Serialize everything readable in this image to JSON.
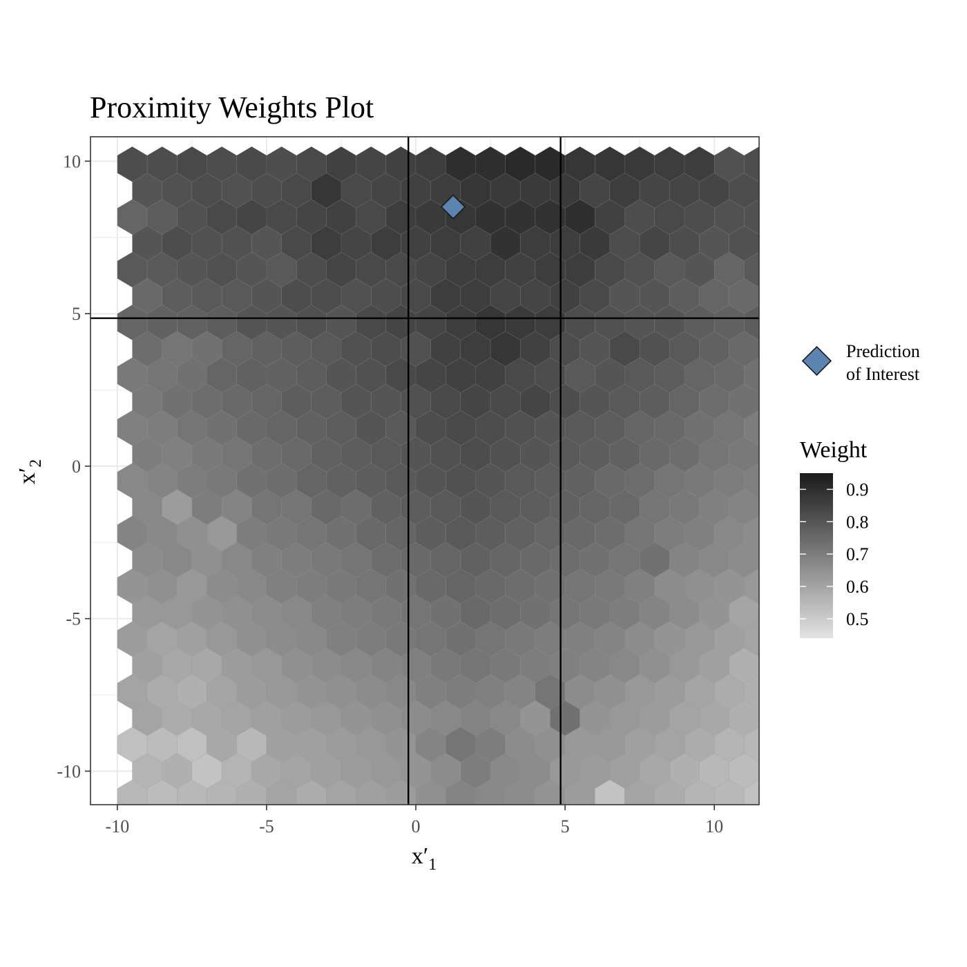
{
  "chart_data": {
    "type": "heatmap",
    "title": "Proximity Weights Plot",
    "xlabel": "x′",
    "xlabel_sub": "1",
    "ylabel": "x′",
    "ylabel_sub": "2",
    "xlim": [
      -10.9,
      11.5
    ],
    "ylim": [
      -11.1,
      10.8
    ],
    "x_ticks": [
      -10,
      -5,
      0,
      5,
      10
    ],
    "y_ticks": [
      -10,
      -5,
      0,
      5,
      10
    ],
    "x_tick_labels": [
      "-10",
      "-5",
      "0",
      "5",
      "10"
    ],
    "y_tick_labels": [
      "-10",
      "-5",
      "0",
      "5",
      "10"
    ],
    "grid": true,
    "vertical_lines": [
      -0.25,
      4.85
    ],
    "horizontal_lines": [
      4.85
    ],
    "prediction_of_interest": {
      "x": 1.25,
      "y": 8.5,
      "color": "#5b84b1"
    },
    "hex_grid": {
      "x_start": -9.5,
      "x_step": 1.0,
      "y_start": 9.9,
      "y_step": -0.865,
      "rows": 26,
      "odd_row_x_offset": 0.5
    },
    "hex_weights": [
      [
        0.82,
        0.82,
        0.83,
        0.82,
        0.83,
        0.82,
        0.83,
        0.85,
        0.84,
        0.85,
        0.86,
        0.9,
        0.9,
        0.91,
        0.91,
        0.88,
        0.88,
        0.87,
        0.86,
        0.86,
        0.81,
        0.82,
        0.81
      ],
      [
        0.8,
        0.81,
        0.82,
        0.81,
        0.82,
        0.83,
        0.88,
        0.83,
        0.84,
        0.85,
        0.86,
        0.88,
        0.87,
        0.87,
        0.87,
        0.84,
        0.86,
        0.84,
        0.84,
        0.84,
        0.82,
        0.82
      ],
      [
        0.76,
        0.78,
        0.81,
        0.83,
        0.84,
        0.83,
        0.84,
        0.85,
        0.83,
        0.86,
        0.87,
        0.88,
        0.89,
        0.89,
        0.89,
        0.9,
        0.85,
        0.82,
        0.83,
        0.82,
        0.81,
        0.81,
        0.87
      ],
      [
        0.8,
        0.82,
        0.81,
        0.81,
        0.8,
        0.83,
        0.86,
        0.84,
        0.86,
        0.85,
        0.86,
        0.85,
        0.89,
        0.86,
        0.86,
        0.87,
        0.82,
        0.84,
        0.82,
        0.8,
        0.81,
        0.8
      ],
      [
        0.79,
        0.79,
        0.8,
        0.81,
        0.8,
        0.79,
        0.82,
        0.84,
        0.83,
        0.83,
        0.84,
        0.86,
        0.86,
        0.85,
        0.86,
        0.86,
        0.83,
        0.81,
        0.79,
        0.8,
        0.76,
        0.79,
        0.82
      ],
      [
        0.75,
        0.78,
        0.79,
        0.79,
        0.8,
        0.82,
        0.82,
        0.81,
        0.82,
        0.83,
        0.86,
        0.86,
        0.84,
        0.84,
        0.85,
        0.83,
        0.8,
        0.8,
        0.78,
        0.76,
        0.75,
        0.79
      ],
      [
        0.76,
        0.77,
        0.77,
        0.78,
        0.8,
        0.8,
        0.81,
        0.8,
        0.83,
        0.84,
        0.84,
        0.86,
        0.88,
        0.87,
        0.86,
        0.82,
        0.81,
        0.8,
        0.8,
        0.78,
        0.77,
        0.78,
        0.78
      ],
      [
        0.74,
        0.72,
        0.73,
        0.76,
        0.77,
        0.78,
        0.79,
        0.81,
        0.82,
        0.81,
        0.85,
        0.86,
        0.88,
        0.85,
        0.82,
        0.8,
        0.83,
        0.81,
        0.79,
        0.77,
        0.75,
        0.8
      ],
      [
        0.71,
        0.72,
        0.73,
        0.76,
        0.77,
        0.77,
        0.78,
        0.8,
        0.81,
        0.83,
        0.84,
        0.85,
        0.85,
        0.83,
        0.82,
        0.79,
        0.8,
        0.79,
        0.78,
        0.76,
        0.75,
        0.73,
        0.72
      ],
      [
        0.71,
        0.73,
        0.74,
        0.75,
        0.76,
        0.78,
        0.78,
        0.8,
        0.8,
        0.81,
        0.83,
        0.84,
        0.83,
        0.84,
        0.82,
        0.8,
        0.79,
        0.78,
        0.76,
        0.74,
        0.73,
        0.72
      ],
      [
        0.69,
        0.7,
        0.72,
        0.73,
        0.75,
        0.76,
        0.77,
        0.78,
        0.8,
        0.79,
        0.82,
        0.83,
        0.82,
        0.81,
        0.8,
        0.79,
        0.78,
        0.76,
        0.75,
        0.73,
        0.72,
        0.7,
        0.7
      ],
      [
        0.7,
        0.69,
        0.71,
        0.72,
        0.74,
        0.75,
        0.77,
        0.78,
        0.79,
        0.8,
        0.81,
        0.82,
        0.81,
        0.8,
        0.79,
        0.78,
        0.77,
        0.75,
        0.74,
        0.72,
        0.71,
        0.7
      ],
      [
        0.67,
        0.68,
        0.7,
        0.71,
        0.73,
        0.74,
        0.76,
        0.77,
        0.78,
        0.79,
        0.8,
        0.81,
        0.8,
        0.79,
        0.78,
        0.77,
        0.75,
        0.74,
        0.72,
        0.71,
        0.7,
        0.69,
        0.6
      ],
      [
        0.67,
        0.62,
        0.7,
        0.68,
        0.72,
        0.72,
        0.75,
        0.74,
        0.77,
        0.78,
        0.79,
        0.8,
        0.79,
        0.78,
        0.77,
        0.76,
        0.75,
        0.72,
        0.71,
        0.69,
        0.68,
        0.67
      ],
      [
        0.68,
        0.67,
        0.65,
        0.63,
        0.7,
        0.71,
        0.72,
        0.73,
        0.75,
        0.76,
        0.78,
        0.79,
        0.78,
        0.77,
        0.76,
        0.75,
        0.74,
        0.72,
        0.7,
        0.69,
        0.67,
        0.66,
        0.67
      ],
      [
        0.66,
        0.67,
        0.65,
        0.67,
        0.69,
        0.7,
        0.71,
        0.72,
        0.74,
        0.75,
        0.76,
        0.77,
        0.76,
        0.75,
        0.74,
        0.73,
        0.72,
        0.73,
        0.68,
        0.67,
        0.66,
        0.65
      ],
      [
        0.64,
        0.65,
        0.63,
        0.66,
        0.67,
        0.69,
        0.7,
        0.71,
        0.72,
        0.73,
        0.75,
        0.76,
        0.75,
        0.74,
        0.73,
        0.72,
        0.71,
        0.69,
        0.66,
        0.65,
        0.64,
        0.63,
        0.62
      ],
      [
        0.63,
        0.63,
        0.64,
        0.65,
        0.66,
        0.67,
        0.69,
        0.7,
        0.71,
        0.72,
        0.73,
        0.75,
        0.74,
        0.73,
        0.72,
        0.71,
        0.7,
        0.68,
        0.66,
        0.64,
        0.6,
        0.61
      ],
      [
        0.62,
        0.6,
        0.61,
        0.63,
        0.65,
        0.66,
        0.67,
        0.69,
        0.7,
        0.71,
        0.72,
        0.73,
        0.72,
        0.71,
        0.7,
        0.69,
        0.68,
        0.66,
        0.64,
        0.63,
        0.61,
        0.6,
        0.67
      ],
      [
        0.61,
        0.59,
        0.59,
        0.62,
        0.63,
        0.65,
        0.66,
        0.67,
        0.68,
        0.69,
        0.71,
        0.72,
        0.71,
        0.7,
        0.69,
        0.68,
        0.67,
        0.65,
        0.63,
        0.61,
        0.57,
        0.59
      ],
      [
        0.6,
        0.58,
        0.57,
        0.6,
        0.62,
        0.63,
        0.64,
        0.65,
        0.66,
        0.67,
        0.69,
        0.7,
        0.69,
        0.68,
        0.72,
        0.66,
        0.65,
        0.63,
        0.62,
        0.6,
        0.58,
        0.57
      ],
      [
        0.6,
        0.58,
        0.59,
        0.6,
        0.61,
        0.62,
        0.63,
        0.64,
        0.65,
        0.66,
        0.67,
        0.68,
        0.67,
        0.64,
        0.73,
        0.64,
        0.63,
        0.62,
        0.6,
        0.59,
        0.57,
        0.58
      ],
      [
        0.53,
        0.54,
        0.53,
        0.59,
        0.55,
        0.61,
        0.61,
        0.62,
        0.63,
        0.64,
        0.68,
        0.72,
        0.7,
        0.66,
        0.65,
        0.63,
        0.63,
        0.61,
        0.6,
        0.58,
        0.56,
        0.55,
        0.58
      ],
      [
        0.56,
        0.57,
        0.52,
        0.56,
        0.59,
        0.6,
        0.61,
        0.62,
        0.63,
        0.64,
        0.66,
        0.7,
        0.67,
        0.66,
        0.63,
        0.62,
        0.61,
        0.59,
        0.57,
        0.55,
        0.54,
        0.62
      ],
      [
        0.55,
        0.54,
        0.55,
        0.56,
        0.57,
        0.6,
        0.58,
        0.6,
        0.61,
        0.62,
        0.65,
        0.68,
        0.67,
        0.66,
        0.64,
        0.62,
        0.52,
        0.6,
        0.58,
        0.56,
        0.55,
        0.53,
        0.51
      ],
      [
        0.53,
        0.52,
        0.53,
        0.54,
        0.55,
        0.57,
        0.59,
        0.6,
        0.61,
        0.62,
        0.63,
        0.64,
        0.66,
        0.62,
        0.63,
        0.62,
        0.61,
        0.55,
        0.57,
        0.56,
        0.54,
        0.52
      ]
    ],
    "legend": {
      "shape_label_line1": "Prediction",
      "shape_label_line2": "of Interest",
      "colorbar_title": "Weight",
      "colorbar_ticks": [
        0.9,
        0.8,
        0.7,
        0.6,
        0.5
      ],
      "colorbar_tick_labels": [
        "0.9",
        "0.8",
        "0.7",
        "0.6",
        "0.5"
      ],
      "colorbar_range": [
        0.44,
        0.95
      ]
    },
    "colors": {
      "low": "#e3e3e3",
      "high": "#1a1a1a",
      "marker": "#5b84b1",
      "panel_border": "#333333",
      "grid": "#ebebeb",
      "reference_lines": "#000000"
    }
  }
}
